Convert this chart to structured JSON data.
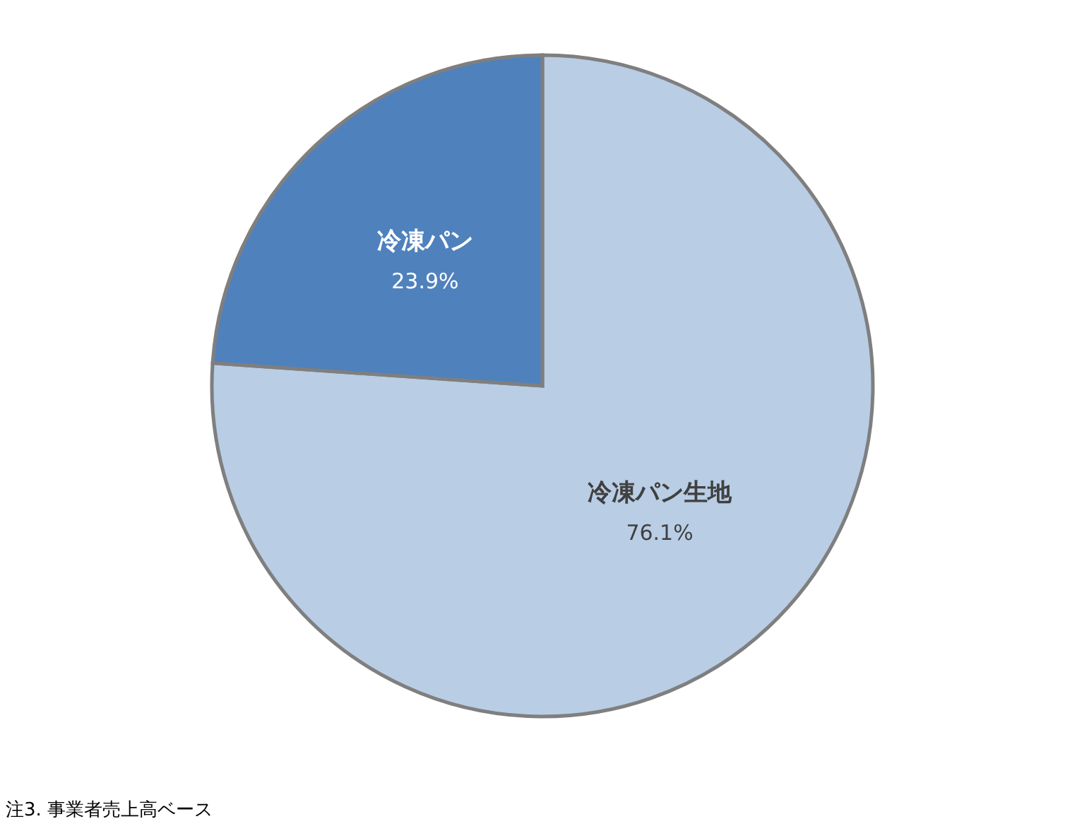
{
  "chart_data": {
    "type": "pie",
    "categories": [
      "冷凍パン生地",
      "冷凍パン"
    ],
    "values": [
      76.1,
      23.9
    ],
    "colors": [
      "#b9cde5",
      "#4f81bd"
    ],
    "value_labels": [
      "76.1%",
      "23.9%"
    ],
    "annotations": [
      "注3. 事業者売上高ベース"
    ]
  }
}
